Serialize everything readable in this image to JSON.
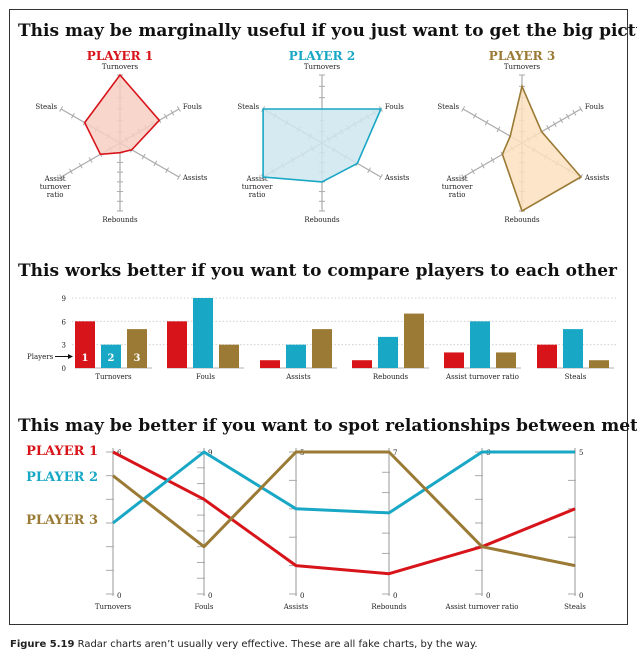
{
  "colors": {
    "player1": "#d7141a",
    "player2": "#18a7c5",
    "player3": "#9a7a34",
    "fill1": "#f7cfc3",
    "fill2": "#cfe6ee",
    "fill3": "#fbe1c0",
    "axis": "#aaaaaa"
  },
  "section1": {
    "title": "This may be marginally useful if you just want to get the big picture"
  },
  "section2": {
    "title": "This works better if you want to compare players to each other",
    "players_label": "Players"
  },
  "section3": {
    "title": "This may be better if you want to spot relationships between metrics"
  },
  "caption": {
    "label": "Figure 5.19",
    "text": "Radar charts aren’t usually very effective. These are all fake charts, by the way."
  },
  "chart_data": [
    {
      "type": "radar",
      "axes": [
        "Turnovers",
        "Fouls",
        "Assists",
        "Rebounds",
        "Assist turnover ratio",
        "Steals"
      ],
      "axis_max": [
        6,
        9,
        5,
        7,
        6,
        5
      ],
      "series": [
        {
          "name": "PLAYER 1",
          "values": [
            6,
            6,
            1,
            1,
            2,
            3
          ]
        },
        {
          "name": "PLAYER 2",
          "values": [
            3,
            9,
            3,
            4,
            6,
            5
          ]
        },
        {
          "name": "PLAYER 3",
          "values": [
            5,
            3,
            5,
            7,
            2,
            1
          ]
        }
      ]
    },
    {
      "type": "bar",
      "categories": [
        "Turnovers",
        "Fouls",
        "Assists",
        "Rebounds",
        "Assist turnover ratio",
        "Steals"
      ],
      "series": [
        {
          "name": "1",
          "values": [
            6,
            6,
            1,
            1,
            2,
            3
          ]
        },
        {
          "name": "2",
          "values": [
            3,
            9,
            3,
            4,
            6,
            5
          ]
        },
        {
          "name": "3",
          "values": [
            5,
            3,
            5,
            7,
            2,
            1
          ]
        }
      ],
      "yticks": [
        0,
        3,
        6,
        9
      ],
      "ylim": [
        0,
        9.5
      ]
    },
    {
      "type": "line",
      "categories": [
        "Turnovers",
        "Fouls",
        "Assists",
        "Rebounds",
        "Assist turnover ratio",
        "Steals"
      ],
      "axis_min_labels": [
        "0",
        "0",
        "0",
        "0",
        "0",
        "0"
      ],
      "axis_max_labels": [
        "6",
        "9",
        "5",
        "7",
        "6",
        "5"
      ],
      "axis_max": [
        6,
        9,
        5,
        7,
        6,
        5
      ],
      "series": [
        {
          "name": "PLAYER 1",
          "values": [
            6,
            6,
            1,
            1,
            2,
            3
          ]
        },
        {
          "name": "PLAYER 2",
          "values": [
            3,
            9,
            3,
            4,
            6,
            5
          ]
        },
        {
          "name": "PLAYER 3",
          "values": [
            5,
            3,
            5,
            7,
            2,
            1
          ]
        }
      ]
    }
  ]
}
